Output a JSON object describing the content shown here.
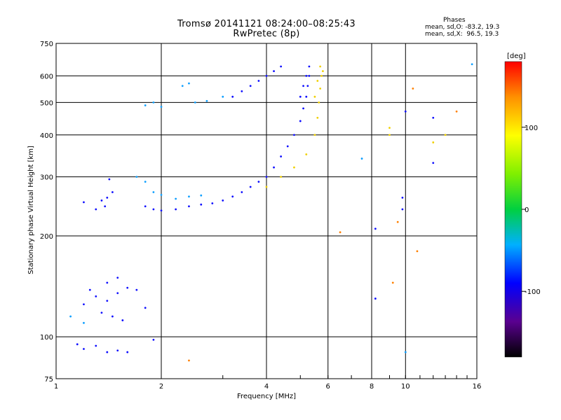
{
  "chart_data": {
    "type": "scatter",
    "title": "Tromsø 20141121 08:24:00–08:25:43",
    "subtitle": "RwPretec (8p)",
    "phase_stats": {
      "heading": "Phases",
      "o_mode": "mean, sd,O: -83.2, 19.3",
      "x_mode": "mean, sd,X:  96.5, 19.3"
    },
    "xlabel": "Frequency [MHz]",
    "ylabel": "Stationary phase Virtual Height [km]",
    "xscale": "log",
    "yscale": "log",
    "xlim": [
      1,
      16
    ],
    "ylim": [
      75,
      750
    ],
    "xticks": [
      1,
      2,
      4,
      6,
      8,
      10,
      16
    ],
    "xtick_labels": [
      "1",
      "2",
      "4",
      "6",
      "8",
      "10",
      "16"
    ],
    "yticks": [
      75,
      100,
      200,
      300,
      400,
      500,
      600,
      750
    ],
    "ytick_labels": [
      "75",
      "100",
      "200",
      "300",
      "400",
      "500",
      "600",
      "750"
    ],
    "colorbar": {
      "label": "[deg]",
      "range": [
        -180,
        180
      ],
      "ticks": [
        -100,
        0,
        100
      ],
      "tick_labels": [
        "-100",
        "0",
        "100"
      ]
    },
    "grid": true,
    "series": [
      {
        "description_color": "#1010ff",
        "phase": -100,
        "points": [
          [
            1.15,
            95
          ],
          [
            1.2,
            92
          ],
          [
            1.3,
            94
          ],
          [
            1.4,
            90
          ],
          [
            1.5,
            91
          ],
          [
            1.6,
            90
          ],
          [
            1.9,
            98
          ],
          [
            1.2,
            125
          ],
          [
            1.3,
            132
          ],
          [
            1.4,
            128
          ],
          [
            1.5,
            135
          ],
          [
            1.6,
            140
          ],
          [
            1.7,
            138
          ],
          [
            1.8,
            122
          ],
          [
            1.35,
            118
          ],
          [
            1.45,
            115
          ],
          [
            1.55,
            112
          ],
          [
            1.25,
            138
          ],
          [
            1.4,
            145
          ],
          [
            1.5,
            150
          ],
          [
            1.3,
            240
          ],
          [
            1.35,
            255
          ],
          [
            1.4,
            260
          ],
          [
            1.45,
            270
          ],
          [
            1.42,
            295
          ],
          [
            1.38,
            245
          ],
          [
            1.2,
            252
          ],
          [
            1.8,
            245
          ],
          [
            1.9,
            240
          ],
          [
            2.0,
            238
          ],
          [
            2.2,
            240
          ],
          [
            2.4,
            245
          ],
          [
            2.6,
            248
          ],
          [
            2.8,
            250
          ],
          [
            3.0,
            255
          ],
          [
            3.2,
            262
          ],
          [
            3.4,
            270
          ],
          [
            3.6,
            280
          ],
          [
            3.8,
            290
          ],
          [
            4.0,
            300
          ],
          [
            4.2,
            320
          ],
          [
            4.4,
            345
          ],
          [
            4.6,
            370
          ],
          [
            4.8,
            400
          ],
          [
            5.0,
            440
          ],
          [
            5.1,
            480
          ],
          [
            5.2,
            520
          ],
          [
            5.25,
            560
          ],
          [
            5.3,
            600
          ],
          [
            5.3,
            640
          ],
          [
            5.2,
            600
          ],
          [
            5.1,
            560
          ],
          [
            5.0,
            520
          ],
          [
            3.8,
            580
          ],
          [
            4.0,
            600
          ],
          [
            4.2,
            620
          ],
          [
            4.4,
            640
          ],
          [
            3.6,
            560
          ],
          [
            3.4,
            540
          ],
          [
            3.2,
            520
          ],
          [
            8.2,
            210
          ],
          [
            8.2,
            130
          ],
          [
            9.8,
            260
          ],
          [
            9.8,
            240
          ],
          [
            10.0,
            470
          ],
          [
            12.0,
            450
          ],
          [
            12.0,
            330
          ]
        ]
      },
      {
        "description_color": "#10a0ff",
        "phase": -60,
        "points": [
          [
            1.1,
            115
          ],
          [
            1.2,
            110
          ],
          [
            1.8,
            490
          ],
          [
            1.9,
            500
          ],
          [
            2.0,
            485
          ],
          [
            2.5,
            500
          ],
          [
            2.7,
            505
          ],
          [
            3.0,
            520
          ],
          [
            1.9,
            270
          ],
          [
            2.0,
            265
          ],
          [
            2.2,
            258
          ],
          [
            2.4,
            262
          ],
          [
            2.6,
            264
          ],
          [
            1.7,
            300
          ],
          [
            1.8,
            290
          ],
          [
            2.3,
            560
          ],
          [
            2.4,
            570
          ],
          [
            7.5,
            340
          ],
          [
            10.0,
            90
          ],
          [
            15.5,
            650
          ]
        ]
      },
      {
        "description_color": "#f0d000",
        "phase": 100,
        "points": [
          [
            4.0,
            280
          ],
          [
            4.4,
            300
          ],
          [
            4.8,
            320
          ],
          [
            5.2,
            350
          ],
          [
            5.5,
            400
          ],
          [
            5.6,
            450
          ],
          [
            5.65,
            500
          ],
          [
            5.7,
            550
          ],
          [
            5.75,
            600
          ],
          [
            5.7,
            640
          ],
          [
            5.8,
            620
          ],
          [
            5.6,
            580
          ],
          [
            5.5,
            520
          ],
          [
            9.0,
            420
          ],
          [
            9.0,
            400
          ],
          [
            12.0,
            380
          ],
          [
            13.0,
            400
          ]
        ]
      },
      {
        "description_color": "#ff8000",
        "phase": 140,
        "points": [
          [
            2.4,
            85
          ],
          [
            6.5,
            205
          ],
          [
            9.2,
            145
          ],
          [
            9.5,
            220
          ],
          [
            10.5,
            550
          ],
          [
            10.8,
            180
          ],
          [
            14.0,
            470
          ]
        ]
      }
    ]
  }
}
